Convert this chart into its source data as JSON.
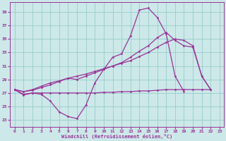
{
  "xlabel": "Windchill (Refroidissement éolien,°C)",
  "background_color": "#cce8e8",
  "grid_color": "#99cccc",
  "line_color": "#993399",
  "xlim": [
    -0.5,
    23.5
  ],
  "ylim": [
    22.0,
    40.5
  ],
  "yticks": [
    23,
    25,
    27,
    29,
    31,
    33,
    35,
    37,
    39
  ],
  "xticks": [
    0,
    1,
    2,
    3,
    4,
    5,
    6,
    7,
    8,
    9,
    10,
    11,
    12,
    13,
    14,
    15,
    16,
    17,
    18,
    19,
    20,
    21,
    22,
    23
  ],
  "series1_x": [
    0,
    1,
    2,
    3,
    4,
    5,
    6,
    7,
    8,
    9,
    10,
    11,
    12,
    13,
    14,
    15,
    16,
    17,
    18,
    19
  ],
  "series1_y": [
    27.5,
    26.7,
    27.0,
    26.8,
    25.8,
    24.2,
    23.5,
    23.2,
    25.2,
    28.5,
    30.5,
    32.3,
    32.8,
    35.5,
    39.3,
    39.6,
    38.2,
    35.8,
    29.5,
    27.2
  ],
  "series2_x": [
    0,
    1,
    2,
    3,
    4,
    5,
    6,
    7,
    8,
    9,
    10,
    11,
    12,
    13,
    14,
    15,
    16,
    17,
    18,
    19,
    20,
    21,
    22
  ],
  "series2_y": [
    27.5,
    26.8,
    27.0,
    27.0,
    27.0,
    27.0,
    27.0,
    27.0,
    27.0,
    27.0,
    27.1,
    27.1,
    27.2,
    27.2,
    27.3,
    27.3,
    27.4,
    27.5,
    27.5,
    27.5,
    27.5,
    27.5,
    27.5
  ],
  "series3_x": [
    0,
    1,
    2,
    3,
    4,
    5,
    6,
    7,
    8,
    9,
    10,
    11,
    12,
    13,
    14,
    15,
    16,
    17,
    18,
    19,
    20,
    21,
    22
  ],
  "series3_y": [
    27.5,
    27.2,
    27.4,
    27.8,
    28.2,
    28.7,
    29.2,
    29.0,
    29.5,
    30.0,
    30.5,
    31.0,
    31.5,
    32.3,
    33.2,
    34.0,
    35.2,
    36.0,
    34.8,
    34.0,
    33.8,
    29.5,
    27.5
  ],
  "series4_x": [
    0,
    1,
    2,
    3,
    4,
    5,
    6,
    7,
    8,
    9,
    10,
    11,
    12,
    13,
    14,
    15,
    16,
    17,
    18,
    19,
    20,
    21,
    22
  ],
  "series4_y": [
    27.5,
    27.2,
    27.5,
    28.0,
    28.5,
    28.8,
    29.2,
    29.5,
    29.8,
    30.2,
    30.6,
    31.0,
    31.4,
    31.8,
    32.4,
    33.0,
    33.8,
    34.5,
    35.0,
    34.8,
    34.0,
    29.5,
    27.5
  ],
  "marker": "o",
  "markersize": 2.0,
  "linewidth": 0.9
}
